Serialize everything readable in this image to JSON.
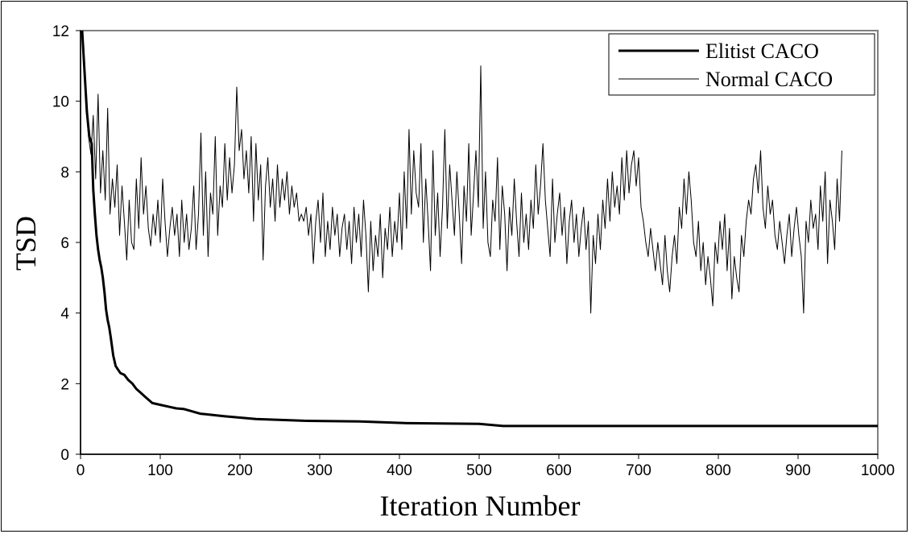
{
  "chart_data": {
    "type": "line",
    "title": "",
    "xlabel": "Iteration Number",
    "ylabel": "TSD",
    "xlim": [
      0,
      1000
    ],
    "ylim": [
      0,
      12
    ],
    "x_ticks": [
      "0",
      "100",
      "200",
      "300",
      "400",
      "500",
      "600",
      "700",
      "800",
      "900",
      "1000"
    ],
    "y_ticks": [
      "0",
      "2",
      "4",
      "6",
      "8",
      "10",
      "12"
    ],
    "grid": false,
    "legend_position": "top-right",
    "series": [
      {
        "name": "Elitist CACO",
        "style": "thick",
        "color": "#000000",
        "x": [
          2,
          8,
          11,
          14,
          16,
          18,
          20,
          22,
          24,
          26,
          28,
          30,
          32,
          34,
          36,
          38,
          41,
          44,
          47,
          50,
          55,
          60,
          65,
          70,
          75,
          80,
          85,
          90,
          100,
          110,
          120,
          130,
          150,
          180,
          220,
          280,
          350,
          410,
          500,
          530,
          600,
          700,
          800,
          900,
          1000
        ],
        "y": [
          12,
          9.7,
          9.0,
          8.8,
          7.5,
          6.8,
          6.2,
          5.8,
          5.5,
          5.3,
          5.0,
          4.6,
          4.1,
          3.8,
          3.6,
          3.3,
          2.8,
          2.5,
          2.4,
          2.3,
          2.25,
          2.1,
          2.0,
          1.85,
          1.75,
          1.65,
          1.55,
          1.45,
          1.4,
          1.35,
          1.3,
          1.28,
          1.15,
          1.08,
          1.0,
          0.95,
          0.93,
          0.88,
          0.86,
          0.8,
          0.8,
          0.8,
          0.8,
          0.8,
          0.8
        ]
      },
      {
        "name": "Normal CACO",
        "style": "thin",
        "color": "#000000",
        "x_start": 1,
        "x_step": 3,
        "y": [
          12,
          11.5,
          9.8,
          9.0,
          8.5,
          9.6,
          7.8,
          10.2,
          7.4,
          8.6,
          7.2,
          9.8,
          6.8,
          7.8,
          7.0,
          8.2,
          6.2,
          7.6,
          6.6,
          5.5,
          7.2,
          6.0,
          5.8,
          7.8,
          6.4,
          8.4,
          6.8,
          7.6,
          6.4,
          5.9,
          6.8,
          6.2,
          7.2,
          6.0,
          7.8,
          6.6,
          5.6,
          6.4,
          7.0,
          6.2,
          6.8,
          5.6,
          7.2,
          6.0,
          6.8,
          5.8,
          6.4,
          7.6,
          5.8,
          6.8,
          9.1,
          6.2,
          8.0,
          5.6,
          7.4,
          6.8,
          9.0,
          6.2,
          7.6,
          7.0,
          8.8,
          7.2,
          8.4,
          7.4,
          8.2,
          10.4,
          8.6,
          9.2,
          7.8,
          8.6,
          7.4,
          9.0,
          6.6,
          8.8,
          7.2,
          8.2,
          5.5,
          7.6,
          8.4,
          7.0,
          7.8,
          6.6,
          8.2,
          7.0,
          7.8,
          7.2,
          8.0,
          6.8,
          7.6,
          7.0,
          7.4,
          6.6,
          6.8,
          6.6,
          7.0,
          6.2,
          6.8,
          5.4,
          6.6,
          7.2,
          6.0,
          7.4,
          5.6,
          6.6,
          5.8,
          7.0,
          6.2,
          6.8,
          5.6,
          6.4,
          6.8,
          5.8,
          6.6,
          5.4,
          7.0,
          6.0,
          6.8,
          5.6,
          7.2,
          6.2,
          4.6,
          6.6,
          5.2,
          6.2,
          5.6,
          6.8,
          5.0,
          6.4,
          5.8,
          7.0,
          5.6,
          6.6,
          6.0,
          7.4,
          5.8,
          8.0,
          6.4,
          9.2,
          6.8,
          8.6,
          7.4,
          7.0,
          8.8,
          6.0,
          7.8,
          6.6,
          5.2,
          8.6,
          6.2,
          7.4,
          5.6,
          7.0,
          9.2,
          6.4,
          8.2,
          7.2,
          6.2,
          8.0,
          6.8,
          5.4,
          7.6,
          6.6,
          8.8,
          6.2,
          7.4,
          8.6,
          7.0,
          11.0,
          6.4,
          8.0,
          6.0,
          5.6,
          7.2,
          6.6,
          8.4,
          5.8,
          7.6,
          6.8,
          5.2,
          7.0,
          6.2,
          7.8,
          6.6,
          5.6,
          7.4,
          6.0,
          6.8,
          5.8,
          7.2,
          6.4,
          8.2,
          6.8,
          7.6,
          8.8,
          7.2,
          6.4,
          5.6,
          7.8,
          6.0,
          6.8,
          7.4,
          6.2,
          7.0,
          5.4,
          6.6,
          7.2,
          6.0,
          6.8,
          5.6,
          6.4,
          7.0,
          5.8,
          6.6,
          4.0,
          6.2,
          5.4,
          6.8,
          5.8,
          7.2,
          6.4,
          7.8,
          6.6,
          8.0,
          7.0,
          7.6,
          6.8,
          8.4,
          7.2,
          8.6,
          7.4,
          8.2,
          8.6,
          7.6,
          8.4,
          7.0,
          6.6,
          6.0,
          5.6,
          6.4,
          5.8,
          5.2,
          6.0,
          5.4,
          4.8,
          6.2,
          5.2,
          4.6,
          5.6,
          6.2,
          5.4,
          7.0,
          6.4,
          7.8,
          6.8,
          8.0,
          7.2,
          6.0,
          5.6,
          6.6,
          5.2,
          6.0,
          4.8,
          5.6,
          5.0,
          4.2,
          6.0,
          5.4,
          6.6,
          5.8,
          6.8,
          5.2,
          6.4,
          4.4,
          5.6,
          5.0,
          4.6,
          6.2,
          5.6,
          6.6,
          7.2,
          6.8,
          7.8,
          8.2,
          7.4,
          8.6,
          7.0,
          6.4,
          7.6,
          6.8,
          7.2,
          6.2,
          5.8,
          6.6,
          6.0,
          5.4,
          6.2,
          6.8,
          5.6,
          6.4,
          7.0,
          6.2,
          5.6,
          4.0,
          6.6,
          6.0,
          7.2,
          6.4,
          6.8,
          5.8,
          7.6,
          6.6,
          8.0,
          5.4,
          7.2,
          6.6,
          5.8,
          7.8,
          6.6,
          8.6
        ]
      }
    ]
  }
}
